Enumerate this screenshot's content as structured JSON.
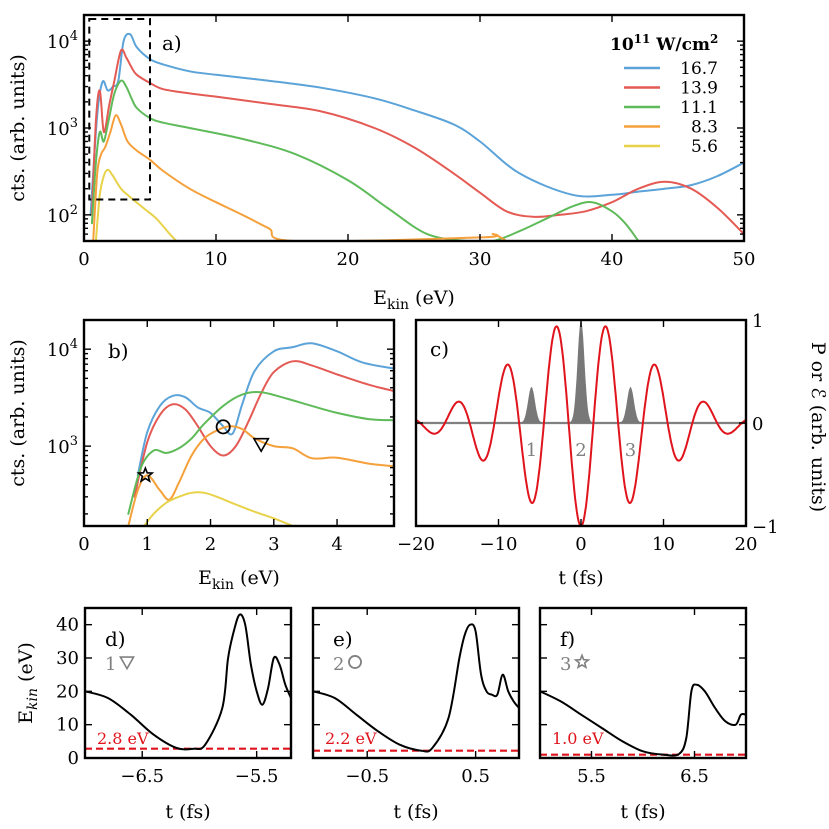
{
  "legend": {
    "title_base": "10",
    "title_exp": "11",
    "title_unit": " W/cm",
    "title_unit_exp": "2"
  },
  "chart_data": [
    {
      "id": "a",
      "type": "line",
      "panel_label": "a)",
      "xlabel_main": "E",
      "xlabel_sub": "kin",
      "xlabel_rest": " (eV)",
      "ylabel": "cts. (arb. units)",
      "xlim": [
        0,
        50
      ],
      "ylim": [
        50,
        20000
      ],
      "yscale": "log",
      "xticks": [
        0,
        10,
        20,
        30,
        40,
        50
      ],
      "xtick_labels": [
        "0",
        "10",
        "20",
        "30",
        "40",
        "50"
      ],
      "yticks": [
        100,
        1000,
        10000
      ],
      "ytick_labels": [
        {
          "base": "10",
          "exp": "2"
        },
        {
          "base": "10",
          "exp": "3"
        },
        {
          "base": "10",
          "exp": "4"
        }
      ],
      "inset_box_x": [
        0.4,
        5.0
      ],
      "inset_box_y": [
        150,
        18000
      ],
      "series": [
        {
          "name": "16.7",
          "color": "#5ba3d8",
          "x": [
            0.5,
            1.0,
            1.4,
            1.8,
            2.2,
            2.6,
            3.0,
            3.5,
            4.0,
            5.0,
            6.0,
            8.0,
            10.0,
            14.0,
            18.0,
            22.0,
            25.0,
            28.0,
            30.0,
            33.0,
            37.0,
            40.0,
            42.0,
            44.0,
            46.0,
            48.0,
            50.0
          ],
          "y": [
            100,
            1400,
            3400,
            2700,
            3000,
            3500,
            10000,
            12000,
            8500,
            6200,
            5400,
            4500,
            4100,
            3500,
            2900,
            2200,
            1600,
            1100,
            700,
            300,
            170,
            170,
            185,
            200,
            220,
            280,
            400
          ]
        },
        {
          "name": "13.9",
          "color": "#e45a54",
          "x": [
            0.6,
            0.9,
            1.2,
            1.5,
            1.9,
            2.3,
            2.8,
            3.2,
            3.6,
            4.0,
            5.0,
            6.0,
            8.0,
            10.0,
            14.0,
            18.0,
            22.0,
            25.0,
            28.0,
            30.0,
            32.0,
            34.0,
            36.0,
            38.0,
            40.0,
            42.0,
            44.0,
            46.0,
            48.0,
            50.0
          ],
          "y": [
            100,
            1200,
            2700,
            900,
            1800,
            3500,
            7800,
            6500,
            5000,
            4100,
            3300,
            2800,
            2500,
            2300,
            1900,
            1550,
            1000,
            600,
            300,
            180,
            110,
            95,
            100,
            110,
            140,
            200,
            240,
            200,
            120,
            60
          ]
        },
        {
          "name": "11.1",
          "color": "#5fbb5a",
          "x": [
            0.6,
            0.9,
            1.2,
            1.5,
            1.9,
            2.3,
            2.8,
            3.2,
            3.6,
            4.0,
            5.0,
            6.0,
            8.0,
            12.0,
            16.0,
            20.0,
            23.0,
            26.0,
            29.0,
            31.0,
            33.0,
            35.0,
            37.0,
            38.5,
            40.0,
            41.0,
            42.0
          ],
          "y": [
            80,
            400,
            900,
            700,
            1300,
            2500,
            3500,
            3000,
            2200,
            1700,
            1300,
            1150,
            1000,
            750,
            500,
            250,
            120,
            60,
            50,
            50,
            65,
            90,
            125,
            140,
            110,
            80,
            50
          ]
        },
        {
          "name": "8.3",
          "color": "#f5a03a",
          "x": [
            0.7,
            1.0,
            1.3,
            1.6,
            2.0,
            2.4,
            2.8,
            3.3,
            4.0,
            5.0,
            6.0,
            8.0,
            10.0,
            12.0,
            14.0,
            16.0,
            30.0,
            31.0,
            32.0
          ],
          "y": [
            50,
            300,
            500,
            600,
            900,
            1400,
            1100,
            700,
            550,
            430,
            320,
            200,
            140,
            100,
            70,
            50,
            55,
            60,
            50
          ]
        },
        {
          "name": "5.6",
          "color": "#e8d24a",
          "x": [
            0.9,
            1.2,
            1.5,
            1.8,
            2.2,
            2.8,
            3.5,
            4.5,
            5.5,
            6.5,
            7.0
          ],
          "y": [
            50,
            170,
            280,
            330,
            280,
            200,
            160,
            120,
            90,
            60,
            50
          ]
        }
      ]
    },
    {
      "id": "b",
      "type": "line",
      "panel_label": "b)",
      "xlabel_main": "E",
      "xlabel_sub": "kin",
      "xlabel_rest": " (eV)",
      "ylabel": "cts. (arb. units)",
      "xlim": [
        0,
        4.9
      ],
      "ylim": [
        150,
        20000
      ],
      "yscale": "log",
      "xticks": [
        0,
        1,
        2,
        3,
        4
      ],
      "xtick_labels": [
        "0",
        "1",
        "2",
        "3",
        "4"
      ],
      "yticks": [
        1000,
        10000
      ],
      "ytick_labels": [
        {
          "base": "10",
          "exp": "3"
        },
        {
          "base": "10",
          "exp": "4"
        }
      ],
      "markers": [
        {
          "symbol": "star",
          "x": 0.97,
          "y": 500
        },
        {
          "symbol": "circle",
          "x": 2.2,
          "y": 1580
        },
        {
          "symbol": "triangle-down",
          "x": 2.8,
          "y": 1050
        }
      ],
      "series": [
        {
          "name": "16.7",
          "color": "#5ba3d8",
          "x": [
            0.85,
            1.0,
            1.2,
            1.4,
            1.6,
            1.8,
            2.0,
            2.2,
            2.35,
            2.5,
            2.7,
            3.0,
            3.3,
            3.6,
            4.0,
            4.4,
            4.9
          ],
          "y": [
            500,
            1400,
            2600,
            3300,
            3200,
            2500,
            2200,
            1600,
            1350,
            2700,
            6000,
            9500,
            10500,
            11500,
            9500,
            7300,
            6300
          ]
        },
        {
          "name": "13.9",
          "color": "#e45a54",
          "x": [
            0.8,
            1.0,
            1.2,
            1.4,
            1.6,
            1.8,
            2.0,
            2.2,
            2.4,
            2.6,
            2.8,
            3.0,
            3.3,
            3.6,
            4.0,
            4.5,
            4.9
          ],
          "y": [
            300,
            1100,
            2100,
            2700,
            2400,
            1600,
            1000,
            800,
            1000,
            1800,
            3500,
            5800,
            7500,
            6800,
            5500,
            4300,
            3700
          ]
        },
        {
          "name": "11.1",
          "color": "#5fbb5a",
          "x": [
            0.7,
            0.9,
            1.1,
            1.3,
            1.5,
            1.7,
            1.9,
            2.2,
            2.5,
            2.8,
            3.2,
            3.6,
            4.0,
            4.5,
            4.9
          ],
          "y": [
            200,
            600,
            900,
            850,
            950,
            1200,
            1700,
            2600,
            3400,
            3600,
            3100,
            2600,
            2200,
            1900,
            1850
          ]
        },
        {
          "name": "8.3",
          "color": "#f5a03a",
          "x": [
            0.7,
            0.85,
            1.0,
            1.2,
            1.35,
            1.5,
            1.7,
            1.9,
            2.1,
            2.3,
            2.5,
            2.7,
            3.0,
            3.3,
            3.6,
            4.0,
            4.5,
            4.9
          ],
          "y": [
            150,
            350,
            500,
            350,
            280,
            420,
            800,
            1200,
            1450,
            1600,
            1500,
            1200,
            1000,
            950,
            750,
            760,
            660,
            620
          ]
        },
        {
          "name": "5.6",
          "color": "#e8d24a",
          "x": [
            0.95,
            1.1,
            1.3,
            1.5,
            1.7,
            1.9,
            2.1,
            2.4,
            2.7,
            3.0,
            3.3
          ],
          "y": [
            150,
            200,
            260,
            300,
            330,
            330,
            300,
            250,
            210,
            180,
            150
          ]
        }
      ]
    },
    {
      "id": "c",
      "type": "line",
      "panel_label": "c)",
      "xlabel": "t (fs)",
      "ylabel": "P or ℰ (arb. units)",
      "xlim": [
        -20,
        20
      ],
      "ylim": [
        -1,
        1
      ],
      "xticks": [
        -20,
        -10,
        0,
        10,
        20
      ],
      "xtick_labels": [
        "−20",
        "−10",
        "0",
        "10",
        "20"
      ],
      "yticks": [
        -1,
        0,
        1
      ],
      "ytick_labels": [
        "−1",
        "0",
        "1"
      ],
      "field": {
        "color": "#e0141c",
        "amplitude": 1.0,
        "period_fs": 6.0,
        "envelope_fwhm_fs": 14.0
      },
      "bursts": [
        {
          "label": "1",
          "t": -6.0,
          "height": 0.35
        },
        {
          "label": "2",
          "t": 0.0,
          "height": 1.0
        },
        {
          "label": "3",
          "t": 6.0,
          "height": 0.35
        }
      ]
    },
    {
      "id": "d",
      "type": "line",
      "panel_label": "d)",
      "marker_label": "1",
      "marker_symbol": "triangle-down",
      "ylabel": "E_kin (eV)",
      "xlabel": "t (fs)",
      "xlim": [
        -7.0,
        -5.2
      ],
      "ylim": [
        0,
        45
      ],
      "xticks": [
        -6.5,
        -5.5
      ],
      "xtick_labels": [
        "−6.5",
        "−5.5"
      ],
      "yticks": [
        0,
        10,
        20,
        30,
        40
      ],
      "ytick_labels": [
        "0",
        "10",
        "20",
        "30",
        "40"
      ],
      "threshold": 2.8,
      "threshold_label": "2.8 eV",
      "x": [
        -7.0,
        -6.8,
        -6.6,
        -6.4,
        -6.2,
        -6.05,
        -5.95,
        -5.8,
        -5.75,
        -5.7,
        -5.65,
        -5.6,
        -5.55,
        -5.5,
        -5.45,
        -5.4,
        -5.35,
        -5.3,
        -5.25,
        -5.2
      ],
      "y": [
        20,
        18,
        13,
        7,
        3,
        2.8,
        4,
        15,
        30,
        38,
        43,
        40,
        28,
        20,
        16,
        21,
        30,
        28,
        22,
        18
      ]
    },
    {
      "id": "e",
      "type": "line",
      "panel_label": "e)",
      "marker_label": "2",
      "marker_symbol": "circle",
      "ylabel": "",
      "xlabel": "t (fs)",
      "xlim": [
        -1.0,
        0.9
      ],
      "ylim": [
        0,
        45
      ],
      "xticks": [
        -0.5,
        0.5
      ],
      "xtick_labels": [
        "−0.5",
        "0.5"
      ],
      "yticks": [
        0,
        10,
        20,
        30,
        40
      ],
      "ytick_labels": [],
      "threshold": 2.2,
      "threshold_label": "2.2 eV",
      "x": [
        -1.0,
        -0.8,
        -0.6,
        -0.4,
        -0.2,
        0.0,
        0.1,
        0.25,
        0.35,
        0.4,
        0.45,
        0.5,
        0.55,
        0.6,
        0.65,
        0.7,
        0.75,
        0.8,
        0.85,
        0.9
      ],
      "y": [
        20,
        18,
        13,
        8,
        4,
        2.2,
        3,
        12,
        30,
        37,
        40,
        38,
        25,
        20,
        19,
        19,
        25,
        20,
        17,
        15
      ]
    },
    {
      "id": "f",
      "type": "line",
      "panel_label": "f)",
      "marker_label": "3",
      "marker_symbol": "star",
      "ylabel": "",
      "xlabel": "t (fs)",
      "xlim": [
        5.0,
        7.0
      ],
      "ylim": [
        0,
        45
      ],
      "xticks": [
        5.5,
        6.5
      ],
      "xtick_labels": [
        "5.5",
        "6.5"
      ],
      "yticks": [
        0,
        10,
        20,
        30,
        40
      ],
      "ytick_labels": [],
      "threshold": 1.0,
      "threshold_label": "1.0 eV",
      "x": [
        5.0,
        5.2,
        5.4,
        5.6,
        5.8,
        6.0,
        6.2,
        6.35,
        6.42,
        6.47,
        6.52,
        6.6,
        6.7,
        6.8,
        6.9,
        6.95,
        7.0
      ],
      "y": [
        20,
        17,
        13,
        9,
        5,
        2,
        1.0,
        1.2,
        6,
        20,
        22,
        20,
        15,
        11,
        10,
        13,
        13
      ]
    }
  ]
}
